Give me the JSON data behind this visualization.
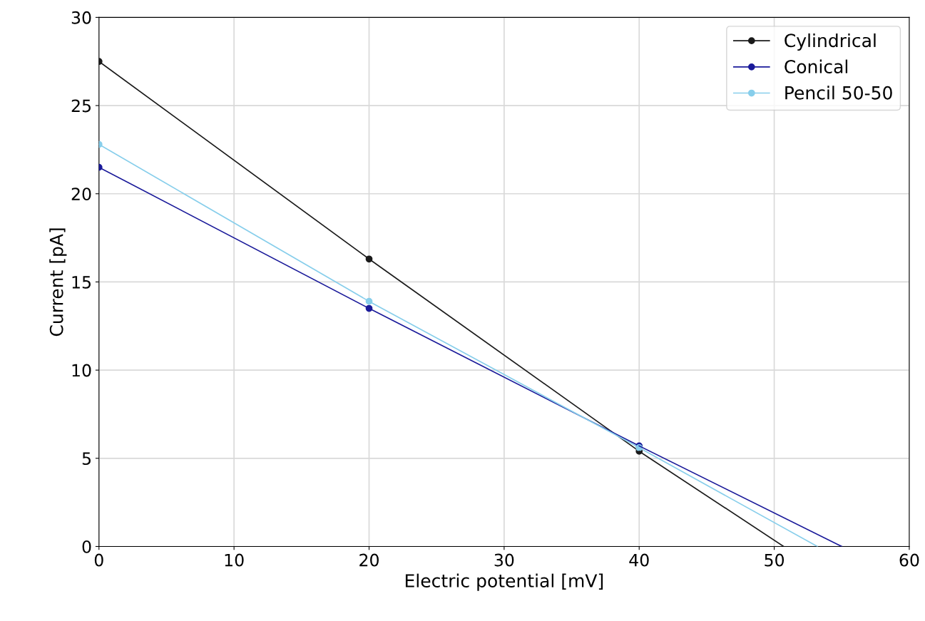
{
  "chart_data": {
    "type": "line",
    "xlabel": "Electric potential [mV]",
    "ylabel": "Current [pA]",
    "xlim": [
      0,
      60
    ],
    "xticks": [
      0,
      10,
      20,
      30,
      40,
      50,
      60
    ],
    "ylim": [
      0,
      30
    ],
    "yticks": [
      0,
      5,
      10,
      15,
      20,
      25,
      30
    ],
    "grid": true,
    "legend": "top right",
    "series": [
      {
        "name": "Cylindrical",
        "color": "#1a1a1a",
        "x": [
          0,
          20,
          40
        ],
        "values": [
          27.5,
          16.3,
          5.4
        ],
        "marker": "circle"
      },
      {
        "name": "Conical",
        "color": "#1a1a9a",
        "x": [
          0,
          20,
          40
        ],
        "values": [
          21.5,
          13.5,
          5.7
        ],
        "marker": "circle"
      },
      {
        "name": "Pencil 50-50",
        "color": "#87ceeb",
        "x": [
          0,
          20,
          40
        ],
        "values": [
          22.8,
          13.9,
          5.6
        ],
        "marker": "circle"
      },
      {
        "color": "#1a1a1a",
        "x": [
          40,
          50.7
        ],
        "values": [
          5.4,
          0
        ],
        "marker": "none"
      },
      {
        "color": "#1a1a9a",
        "x": [
          40,
          55
        ],
        "values": [
          5.7,
          0
        ],
        "marker": "none"
      },
      {
        "color": "#87ceeb",
        "x": [
          40,
          53.2
        ],
        "values": [
          5.6,
          0
        ],
        "marker": "none"
      }
    ]
  }
}
